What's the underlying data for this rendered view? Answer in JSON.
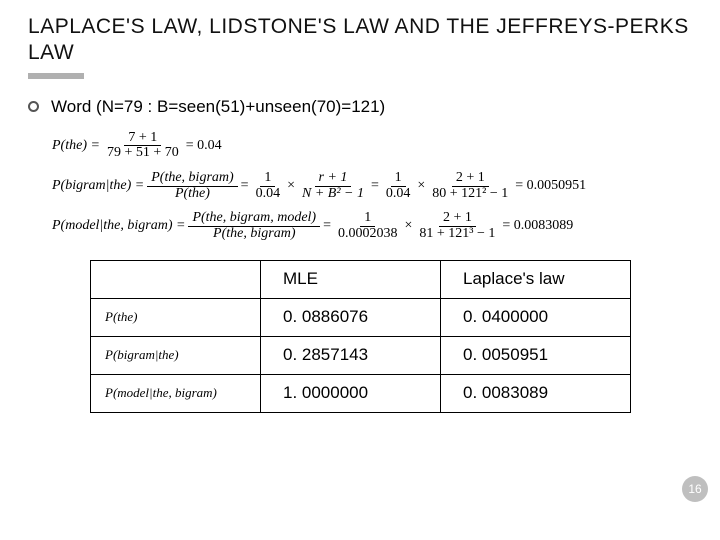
{
  "title": {
    "parts": [
      "L",
      "APLACE'S LAW, ",
      "L",
      "IDSTONE'S LAW AND THE ",
      "J",
      "EFFREYS-",
      "P",
      "ERKS LAW"
    ]
  },
  "bullet": "Word (N=79 : B=seen(51)+unseen(70)=121)",
  "equations": {
    "eq1": {
      "lhs": "P(the) =",
      "num1": "7 + 1",
      "den1": "79 + 51 + 70",
      "rhs": "= 0.04"
    },
    "eq2": {
      "lhs": "P(bigram|the) =",
      "fA_num": "P(the, bigram)",
      "fA_den": "P(the)",
      "mid1": " = ",
      "fB_num": "1",
      "fB_den": "0.04",
      "x1": " × ",
      "fC_num": "r + 1",
      "fC_den": "N + B² − 1",
      "mid2": " = ",
      "fD_num": "1",
      "fD_den": "0.04",
      "x2": " × ",
      "fE_num": "2 + 1",
      "fE_den": "80 + 121² − 1",
      "rhs": " = 0.0050951"
    },
    "eq3": {
      "lhs": "P(model|the, bigram) =",
      "fA_num": "P(the, bigram, model)",
      "fA_den": "P(the, bigram)",
      "mid1": " = ",
      "fB_num": "1",
      "fB_den": "0.0002038",
      "x1": " × ",
      "fC_num": "2 + 1",
      "fC_den": "81 + 121³ − 1",
      "rhs": " = 0.0083089"
    }
  },
  "table": {
    "headers": [
      "",
      "MLE",
      "Laplace's law"
    ],
    "rows": [
      {
        "label": "P(the)",
        "mle": "0. 0886076",
        "lap": "0. 0400000"
      },
      {
        "label": "P(bigram|the)",
        "mle": "0. 2857143",
        "lap": "0. 0050951"
      },
      {
        "label": "P(model|the, bigram)",
        "mle": "1. 0000000",
        "lap": "0. 0083089"
      }
    ]
  },
  "pageNumber": "16"
}
